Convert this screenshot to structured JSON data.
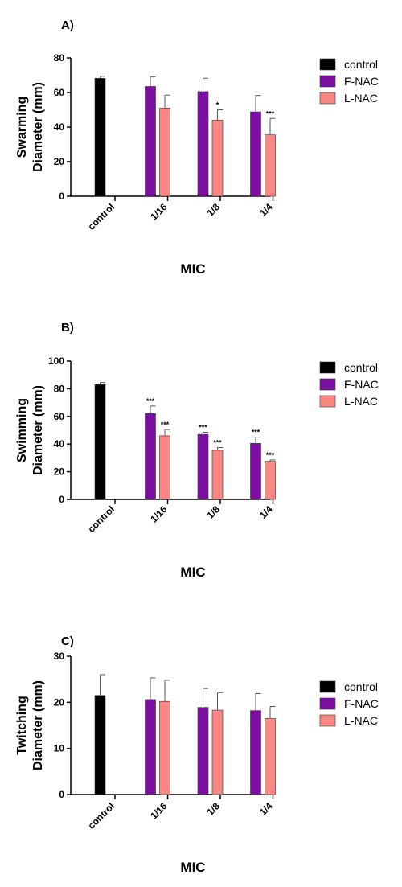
{
  "chart_data": [
    {
      "type": "bar",
      "panel_label": "A)",
      "ylabel_lines": [
        "Swarming",
        "Diameter (mm)"
      ],
      "xlabel": "MIC",
      "categories": [
        "control",
        "1/16",
        "1/8",
        "1/4"
      ],
      "ylim": [
        0,
        80
      ],
      "yticks": [
        0,
        20,
        40,
        60,
        80
      ],
      "legend": "right",
      "series": [
        {
          "name": "control",
          "color": "#000000",
          "values": [
            68.2,
            null,
            null,
            null
          ],
          "errors": [
            1.2,
            null,
            null,
            null
          ],
          "sig": [
            "",
            "",
            "",
            ""
          ]
        },
        {
          "name": "F-NAC",
          "color": "#7a0f9f",
          "values": [
            null,
            63.5,
            60.5,
            48.8
          ],
          "errors": [
            null,
            5.5,
            7.8,
            9.5
          ],
          "sig": [
            "",
            "",
            "",
            ""
          ]
        },
        {
          "name": "L-NAC",
          "color": "#f98783",
          "values": [
            null,
            51.0,
            44.0,
            35.5
          ],
          "errors": [
            null,
            7.5,
            6.0,
            9.5
          ],
          "sig": [
            "",
            "",
            "*",
            "***"
          ]
        }
      ]
    },
    {
      "type": "bar",
      "panel_label": "B)",
      "ylabel_lines": [
        "Swimming",
        "Diameter (mm)"
      ],
      "xlabel": "MIC",
      "categories": [
        "control",
        "1/16",
        "1/8",
        "1/4"
      ],
      "ylim": [
        0,
        100
      ],
      "yticks": [
        0,
        20,
        40,
        60,
        80,
        100
      ],
      "legend": "right",
      "series": [
        {
          "name": "control",
          "color": "#000000",
          "values": [
            83.0,
            null,
            null,
            null
          ],
          "errors": [
            1.5,
            null,
            null,
            null
          ],
          "sig": [
            "",
            "",
            "",
            ""
          ]
        },
        {
          "name": "F-NAC",
          "color": "#7a0f9f",
          "values": [
            null,
            62.0,
            47.0,
            40.5
          ],
          "errors": [
            null,
            5.5,
            1.5,
            4.5
          ],
          "sig": [
            "",
            "***",
            "***",
            "***"
          ]
        },
        {
          "name": "L-NAC",
          "color": "#f98783",
          "values": [
            null,
            46.0,
            35.5,
            27.5
          ],
          "errors": [
            null,
            4.5,
            2.0,
            1.0
          ],
          "sig": [
            "",
            "***",
            "***",
            "***"
          ]
        }
      ]
    },
    {
      "type": "bar",
      "panel_label": "C)",
      "ylabel_lines": [
        "Twitching",
        "Diameter (mm)"
      ],
      "xlabel": "MIC",
      "categories": [
        "control",
        "1/16",
        "1/8",
        "1/4"
      ],
      "ylim": [
        0,
        30
      ],
      "yticks": [
        0,
        10,
        20,
        30
      ],
      "legend": "right",
      "series": [
        {
          "name": "control",
          "color": "#000000",
          "values": [
            21.5,
            null,
            null,
            null
          ],
          "errors": [
            4.5,
            null,
            null,
            null
          ],
          "sig": [
            "",
            "",
            "",
            ""
          ]
        },
        {
          "name": "F-NAC",
          "color": "#7a0f9f",
          "values": [
            null,
            20.6,
            18.9,
            18.2
          ],
          "errors": [
            null,
            4.7,
            4.1,
            3.7
          ],
          "sig": [
            "",
            "",
            "",
            ""
          ]
        },
        {
          "name": "L-NAC",
          "color": "#f98783",
          "values": [
            null,
            20.2,
            18.3,
            16.5
          ],
          "errors": [
            null,
            4.6,
            3.8,
            2.6
          ],
          "sig": [
            "",
            "",
            "",
            ""
          ]
        }
      ]
    }
  ]
}
